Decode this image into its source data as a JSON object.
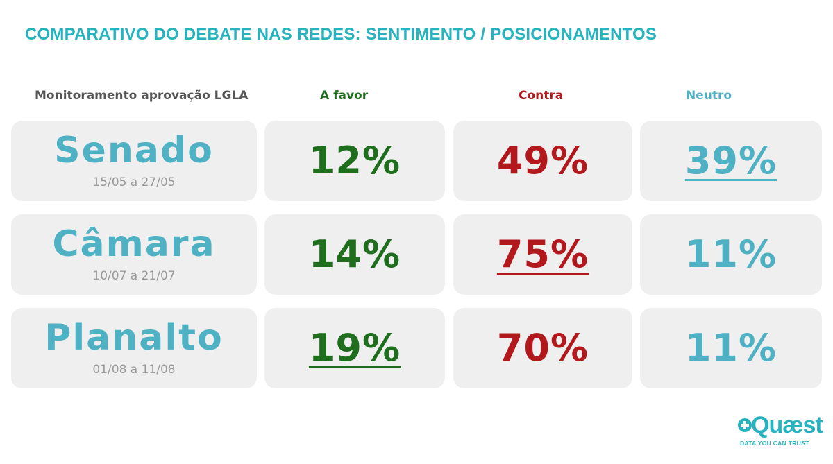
{
  "title": "COMPARATIVO DO DEBATE NAS REDES: SENTIMENTO / POSICIONAMENTOS",
  "headers": {
    "label": "Monitoramento aprovação LGLA",
    "favor": "A favor",
    "contra": "Contra",
    "neutro": "Neutro"
  },
  "rows": [
    {
      "name": "Senado",
      "date": "15/05 a 27/05",
      "favor": "12%",
      "contra": "49%",
      "neutro": "39%"
    },
    {
      "name": "Câmara",
      "date": "10/07 a 21/07",
      "favor": "14%",
      "contra": "75%",
      "neutro": "11%"
    },
    {
      "name": "Planalto",
      "date": "01/08 a 11/08",
      "favor": "19%",
      "contra": "70%",
      "neutro": "11%"
    }
  ],
  "colors": {
    "title": "#26b3bf",
    "favor": "#1e6e1e",
    "contra": "#b3191c",
    "neutro": "#4fb1c4",
    "box": "#efefef"
  },
  "logo": {
    "word": "Quæst",
    "tagline": "DATA YOU CAN TRUST",
    "icon": "plus-badge-icon"
  }
}
